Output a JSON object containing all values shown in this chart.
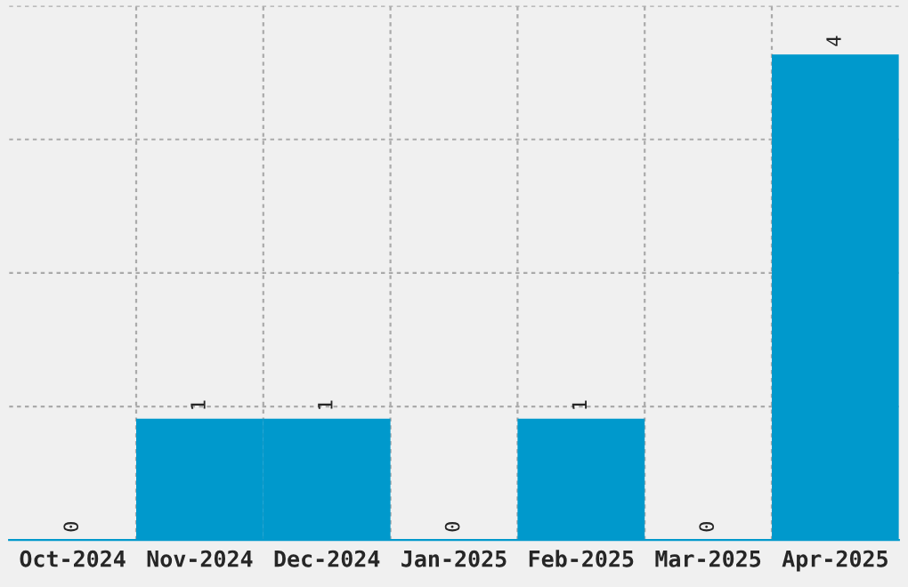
{
  "chart_data": {
    "type": "bar",
    "categories": [
      "Oct-2024",
      "Nov-2024",
      "Dec-2024",
      "Jan-2025",
      "Feb-2025",
      "Mar-2025",
      "Apr-2025"
    ],
    "values": [
      0,
      1,
      1,
      0,
      1,
      0,
      4
    ],
    "color": "#0099cc",
    "data_labels": true,
    "grid": true,
    "tick_labels": "x",
    "ylim": [
      0,
      4.4
    ],
    "yticks": [
      {
        "value": 1.1,
        "label": null
      },
      {
        "value": 2.2,
        "label": null
      },
      {
        "value": 3.3,
        "label": null
      },
      {
        "value": 4.4,
        "label": null
      }
    ]
  }
}
